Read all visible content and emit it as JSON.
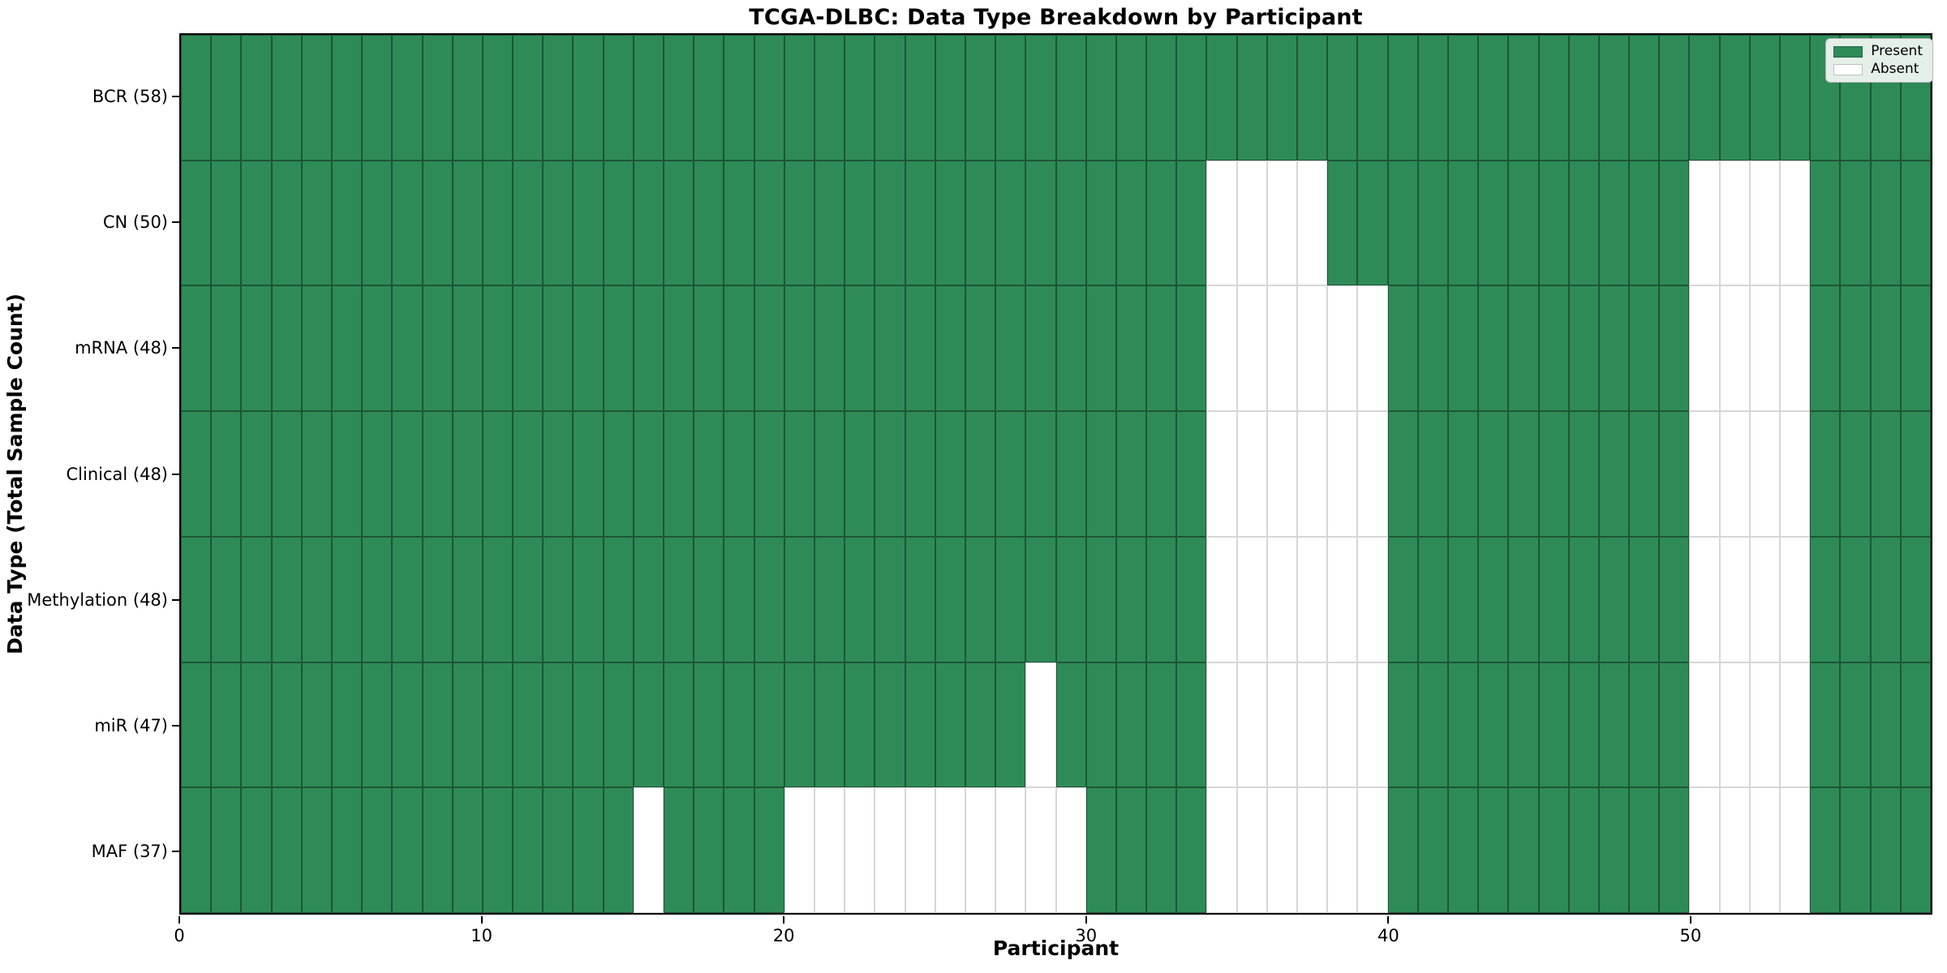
{
  "title": "TCGA-DLBC: Data Type Breakdown by Participant",
  "xlabel": "Participant",
  "ylabel": "Data Type (Total Sample Count)",
  "legend": {
    "position": "upper right",
    "items": [
      {
        "label": "Present",
        "color": "#2e8b57"
      },
      {
        "label": "Absent",
        "color": "#ffffff"
      }
    ]
  },
  "chart_data": {
    "type": "heatmap",
    "title": "TCGA-DLBC: Data Type Breakdown by Participant",
    "xlabel": "Participant",
    "ylabel": "Data Type (Total Sample Count)",
    "n_participants": 58,
    "xlim": [
      0,
      58
    ],
    "x_ticks": [
      0,
      10,
      20,
      30,
      40,
      50
    ],
    "grid": "cell-edges",
    "legend_position": "upper right",
    "colors": {
      "present": "#2e8b57",
      "absent": "#ffffff"
    },
    "rows": [
      {
        "label": "BCR (58)",
        "name": "BCR",
        "count": 58,
        "absent_participants": []
      },
      {
        "label": "CN (50)",
        "name": "CN",
        "count": 50,
        "absent_participants": [
          34,
          35,
          36,
          37,
          50,
          51,
          52,
          53
        ]
      },
      {
        "label": "mRNA (48)",
        "name": "mRNA",
        "count": 48,
        "absent_participants": [
          34,
          35,
          36,
          37,
          38,
          39,
          50,
          51,
          52,
          53
        ]
      },
      {
        "label": "Clinical (48)",
        "name": "Clinical",
        "count": 48,
        "absent_participants": [
          34,
          35,
          36,
          37,
          38,
          39,
          50,
          51,
          52,
          53
        ]
      },
      {
        "label": "Methylation (48)",
        "name": "Methylation",
        "count": 48,
        "absent_participants": [
          34,
          35,
          36,
          37,
          38,
          39,
          50,
          51,
          52,
          53
        ]
      },
      {
        "label": "miR (47)",
        "name": "miR",
        "count": 47,
        "absent_participants": [
          28,
          34,
          35,
          36,
          37,
          38,
          39,
          50,
          51,
          52,
          53
        ]
      },
      {
        "label": "MAF (37)",
        "name": "MAF",
        "count": 37,
        "absent_participants": [
          15,
          20,
          21,
          22,
          23,
          24,
          25,
          26,
          27,
          28,
          29,
          34,
          35,
          36,
          37,
          38,
          39,
          50,
          51,
          52,
          53
        ]
      }
    ]
  }
}
